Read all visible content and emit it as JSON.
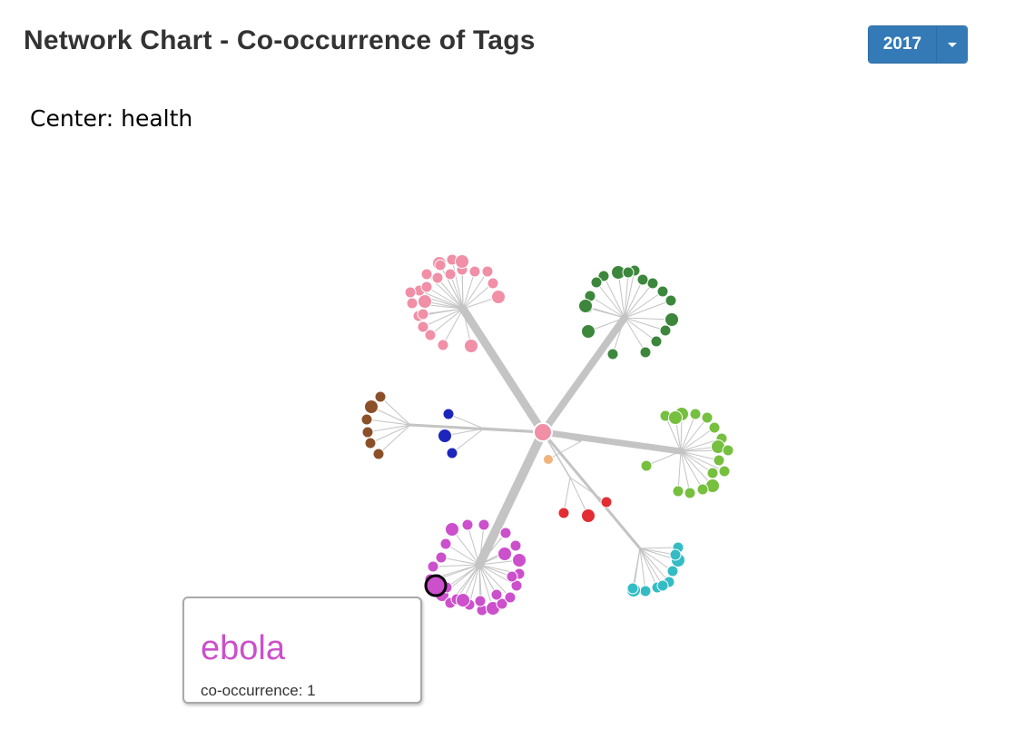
{
  "header": {
    "title": "Network Chart - Co-occurrence of Tags",
    "year_selector": {
      "selected": "2017"
    }
  },
  "center": {
    "label": "Center:",
    "tag": "health"
  },
  "colors": {
    "edge": "#c4c4c4",
    "center_node": "#f08fa6",
    "pink": "#f08fa6",
    "dark_green": "#3c873c",
    "light_green": "#76bf3f",
    "brown": "#8b5029",
    "blue": "#1c26bd",
    "orange": "#f2b37a",
    "red": "#e32d32",
    "cyan": "#34bcc5",
    "magenta": "#cc4fcc",
    "highlight_stroke": "#000000"
  },
  "network": {
    "center": "health",
    "highlighted_leaf": "ebola",
    "clusters": [
      {
        "name": "pink",
        "color": "pink",
        "leaf_count": 23
      },
      {
        "name": "dark-green",
        "color": "dark_green",
        "leaf_count": 18
      },
      {
        "name": "light-green",
        "color": "light_green",
        "leaf_count": 17
      },
      {
        "name": "cyan",
        "color": "cyan",
        "leaf_count": 10
      },
      {
        "name": "red",
        "color": "red",
        "leaf_count": 3
      },
      {
        "name": "orange",
        "color": "orange",
        "leaf_count": 1
      },
      {
        "name": "magenta",
        "color": "magenta",
        "leaf_count": 27
      },
      {
        "name": "blue",
        "color": "blue",
        "leaf_count": 3
      },
      {
        "name": "brown",
        "color": "brown",
        "leaf_count": 6
      }
    ]
  },
  "tooltip": {
    "tag": "ebola",
    "metric": "co-occurrence: 1"
  }
}
